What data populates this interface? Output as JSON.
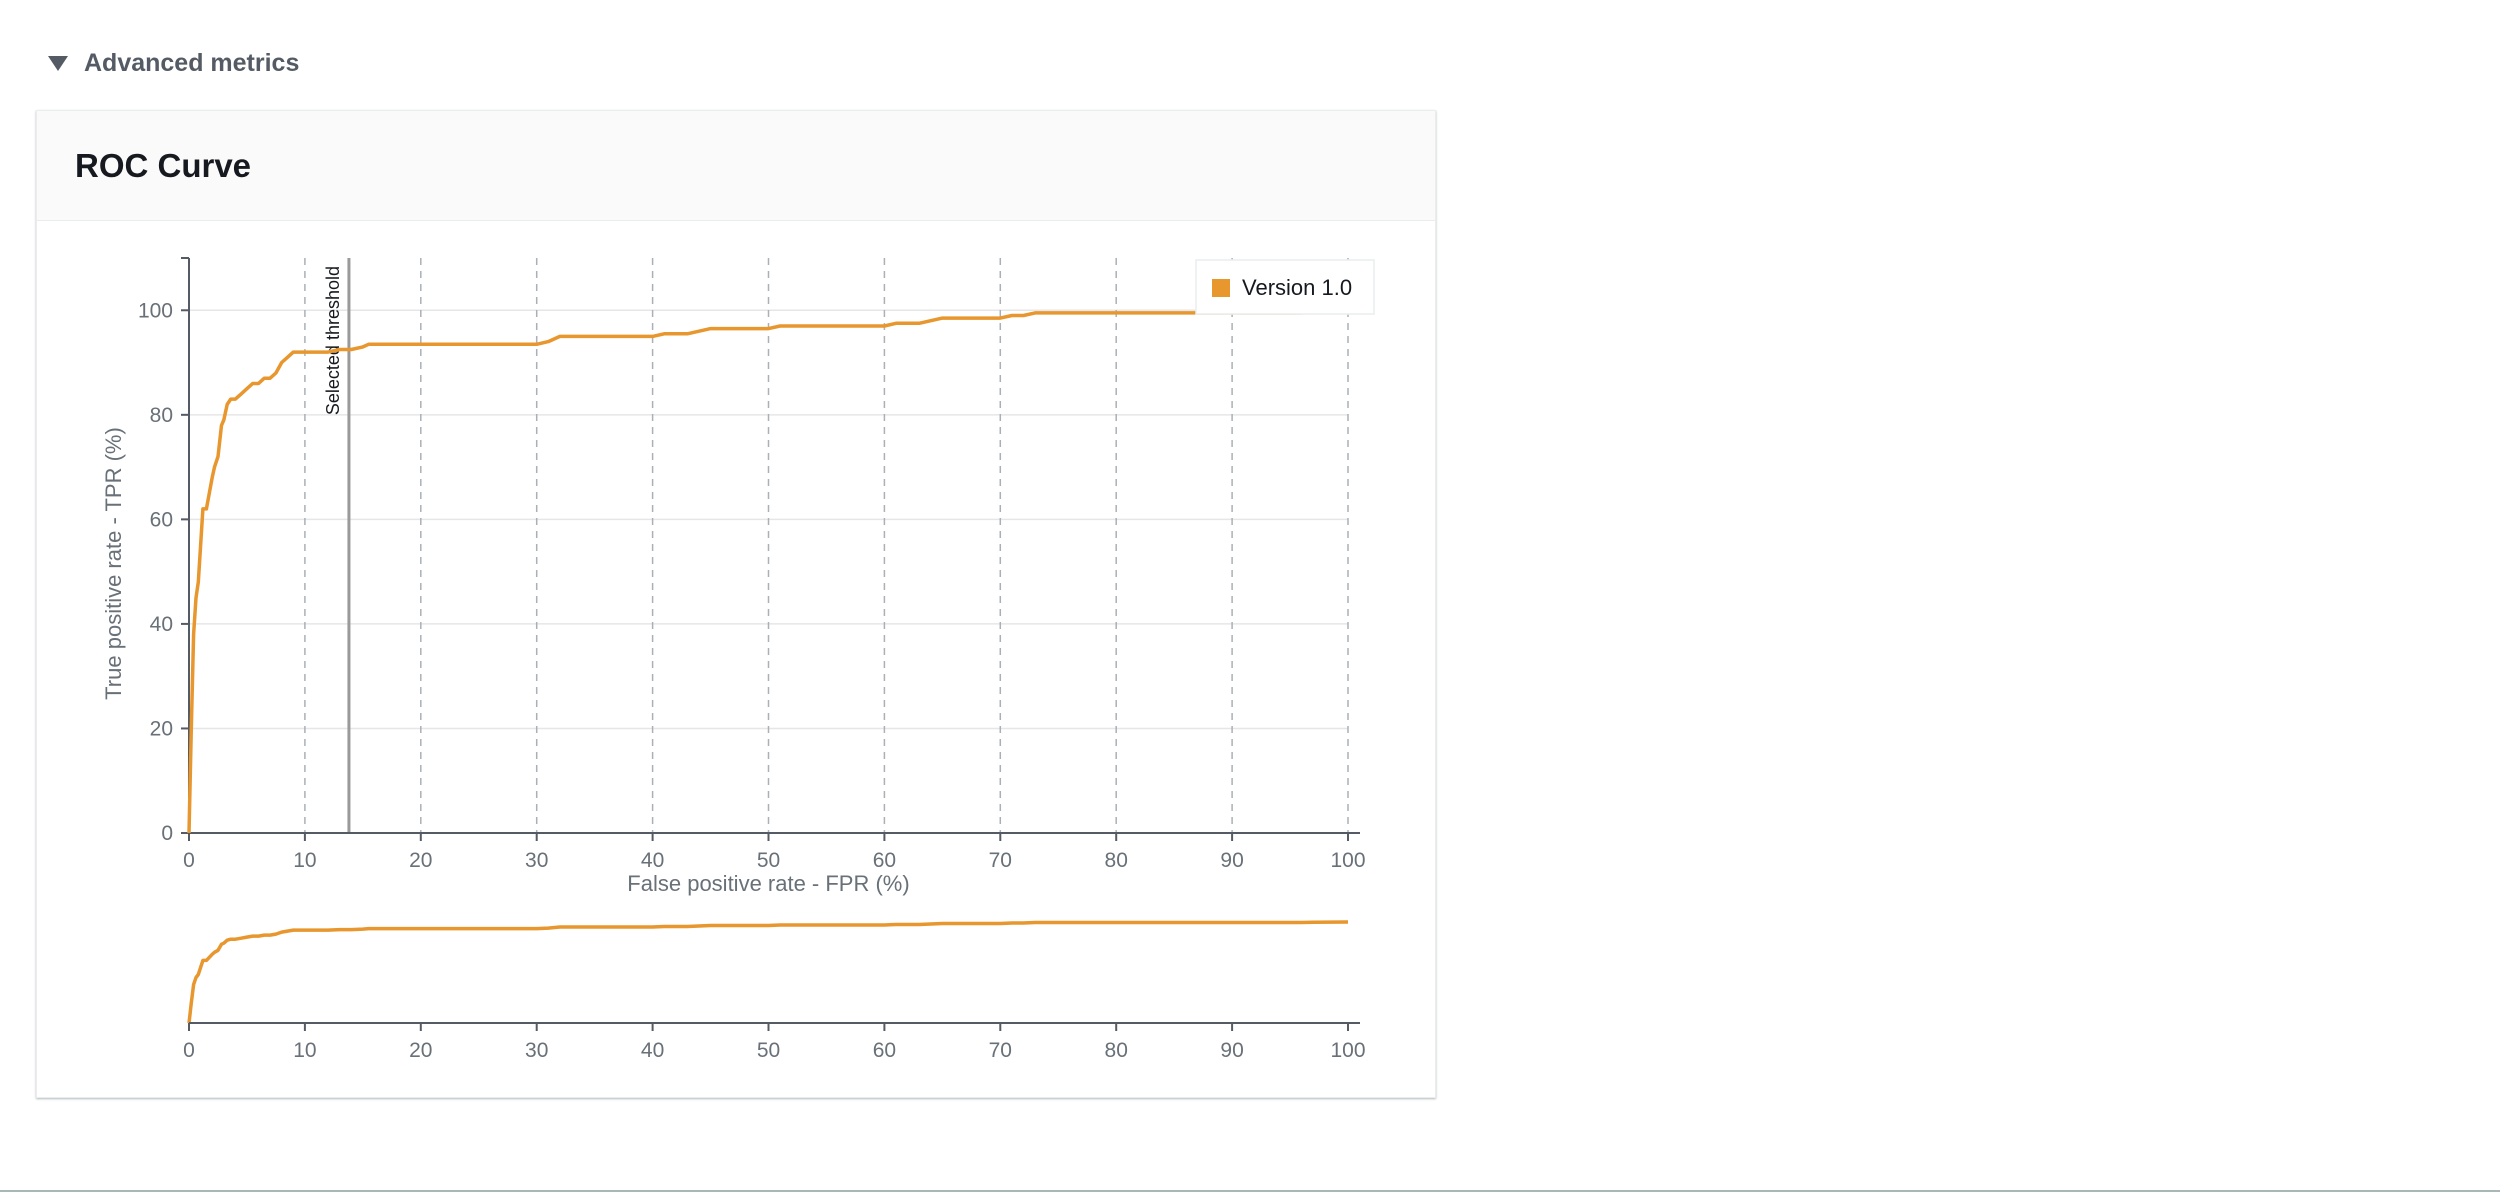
{
  "section": {
    "title": "Advanced metrics"
  },
  "panel": {
    "title": "ROC Curve"
  },
  "chart_data": {
    "type": "line",
    "title": "ROC Curve",
    "xlabel": "False positive rate - FPR (%)",
    "ylabel": "True positive rate - TPR (%)",
    "xlim": [
      0,
      100
    ],
    "ylim": [
      0,
      110
    ],
    "x_ticks": [
      0,
      10,
      20,
      30,
      40,
      50,
      60,
      70,
      80,
      90,
      100
    ],
    "y_ticks": [
      0,
      20,
      40,
      60,
      80,
      100
    ],
    "grid": {
      "x": "dashed",
      "y": "solid"
    },
    "legend_placement": "top-right",
    "threshold": {
      "label": "Selected threshold",
      "x": 13.8
    },
    "series": [
      {
        "name": "Version 1.0",
        "color": "#e8962e",
        "x": [
          0,
          0.2,
          0.4,
          0.6,
          0.8,
          1.0,
          1.2,
          1.5,
          2.0,
          2.2,
          2.5,
          2.8,
          3.0,
          3.3,
          3.6,
          4.0,
          4.5,
          5.0,
          5.5,
          6.0,
          6.5,
          7.0,
          7.5,
          8.0,
          8.5,
          9.0,
          10.0,
          11.0,
          12.0,
          13.0,
          14.0,
          15.0,
          15.5,
          16.0,
          20.0,
          25.0,
          30.0,
          31.0,
          32.0,
          33.0,
          35.0,
          40.0,
          41.0,
          43.0,
          44.0,
          45.0,
          46.0,
          50.0,
          51.0,
          55.0,
          60.0,
          61.0,
          63.0,
          64.0,
          65.0,
          66.0,
          70.0,
          71.0,
          72.0,
          73.0,
          80.0,
          86.0,
          90.0,
          95.0,
          96.0,
          97.0,
          100.0
        ],
        "y": [
          0,
          20,
          38,
          45,
          48,
          55,
          62,
          62,
          68,
          70,
          72,
          78,
          79,
          82,
          83,
          83,
          84,
          85,
          86,
          86,
          87,
          87,
          88,
          90,
          91,
          92,
          92,
          92,
          92,
          92.5,
          92.5,
          93,
          93.5,
          93.5,
          93.5,
          93.5,
          93.5,
          94,
          95,
          95,
          95,
          95,
          95.5,
          95.5,
          96,
          96.5,
          96.5,
          96.5,
          97,
          97,
          97,
          97.5,
          97.5,
          98,
          98.5,
          98.5,
          98.5,
          99,
          99,
          99.5,
          99.5,
          99.5,
          99.5,
          99.5,
          99.5,
          99.8,
          100
        ]
      }
    ]
  }
}
